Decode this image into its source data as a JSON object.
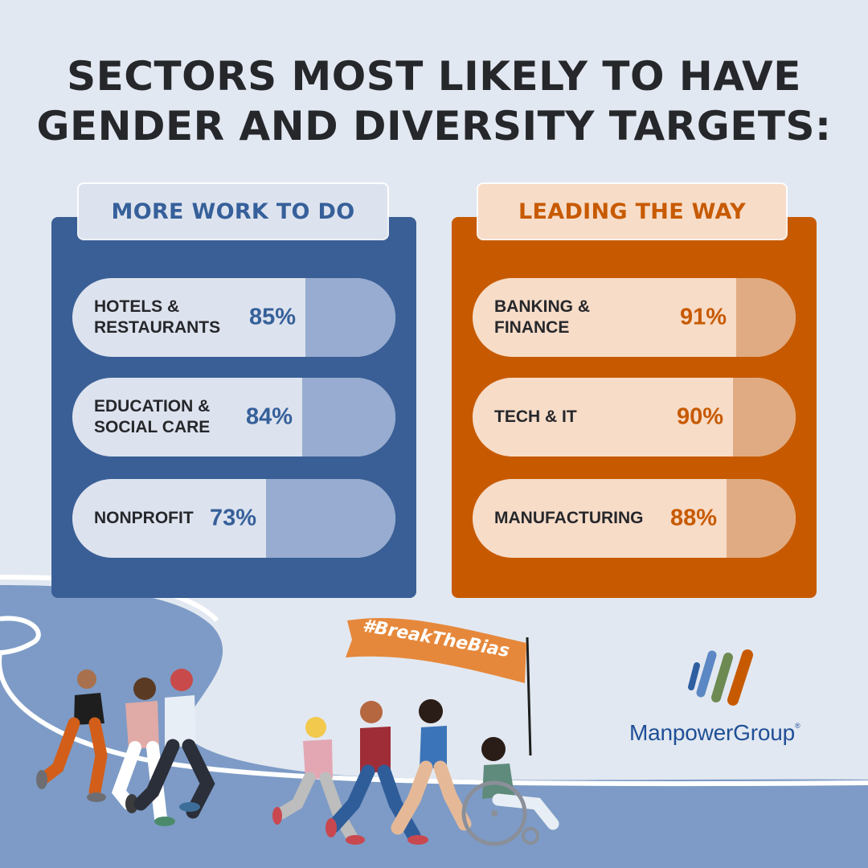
{
  "title": {
    "line1": "SECTORS MOST LIKELY TO HAVE",
    "line2": "GENDER AND DIVERSITY TARGETS:"
  },
  "chart_data": [
    {
      "type": "bar",
      "title": "MORE WORK TO DO",
      "categories": [
        "HOTELS &\nRESTAURANTS",
        "EDUCATION &\nSOCIAL CARE",
        "NONPROFIT"
      ],
      "values": [
        85,
        84,
        73
      ],
      "value_labels": [
        "85%",
        "84%",
        "73%"
      ],
      "unit": "%",
      "ylim": [
        0,
        100
      ],
      "orientation": "horizontal",
      "color": "#3a5f96",
      "fill_color": "#97acd0"
    },
    {
      "type": "bar",
      "title": "LEADING THE WAY",
      "categories": [
        "BANKING &\nFINANCE",
        "TECH & IT",
        "MANUFACTURING"
      ],
      "values": [
        91,
        90,
        88
      ],
      "value_labels": [
        "91%",
        "90%",
        "88%"
      ],
      "unit": "%",
      "ylim": [
        0,
        100
      ],
      "orientation": "horizontal",
      "color": "#c75a00",
      "fill_color": "#e0ab82"
    }
  ],
  "banner": {
    "text": "#BreakTheBias"
  },
  "logo": {
    "text": "ManpowerGroup",
    "mark": "®",
    "icon": "manpowergroup-stripes-icon"
  },
  "colors": {
    "background": "#e2e8f1",
    "blue": "#3a5f96",
    "orange": "#c75a00",
    "title": "#26272b",
    "road": "#7d9bc6"
  }
}
